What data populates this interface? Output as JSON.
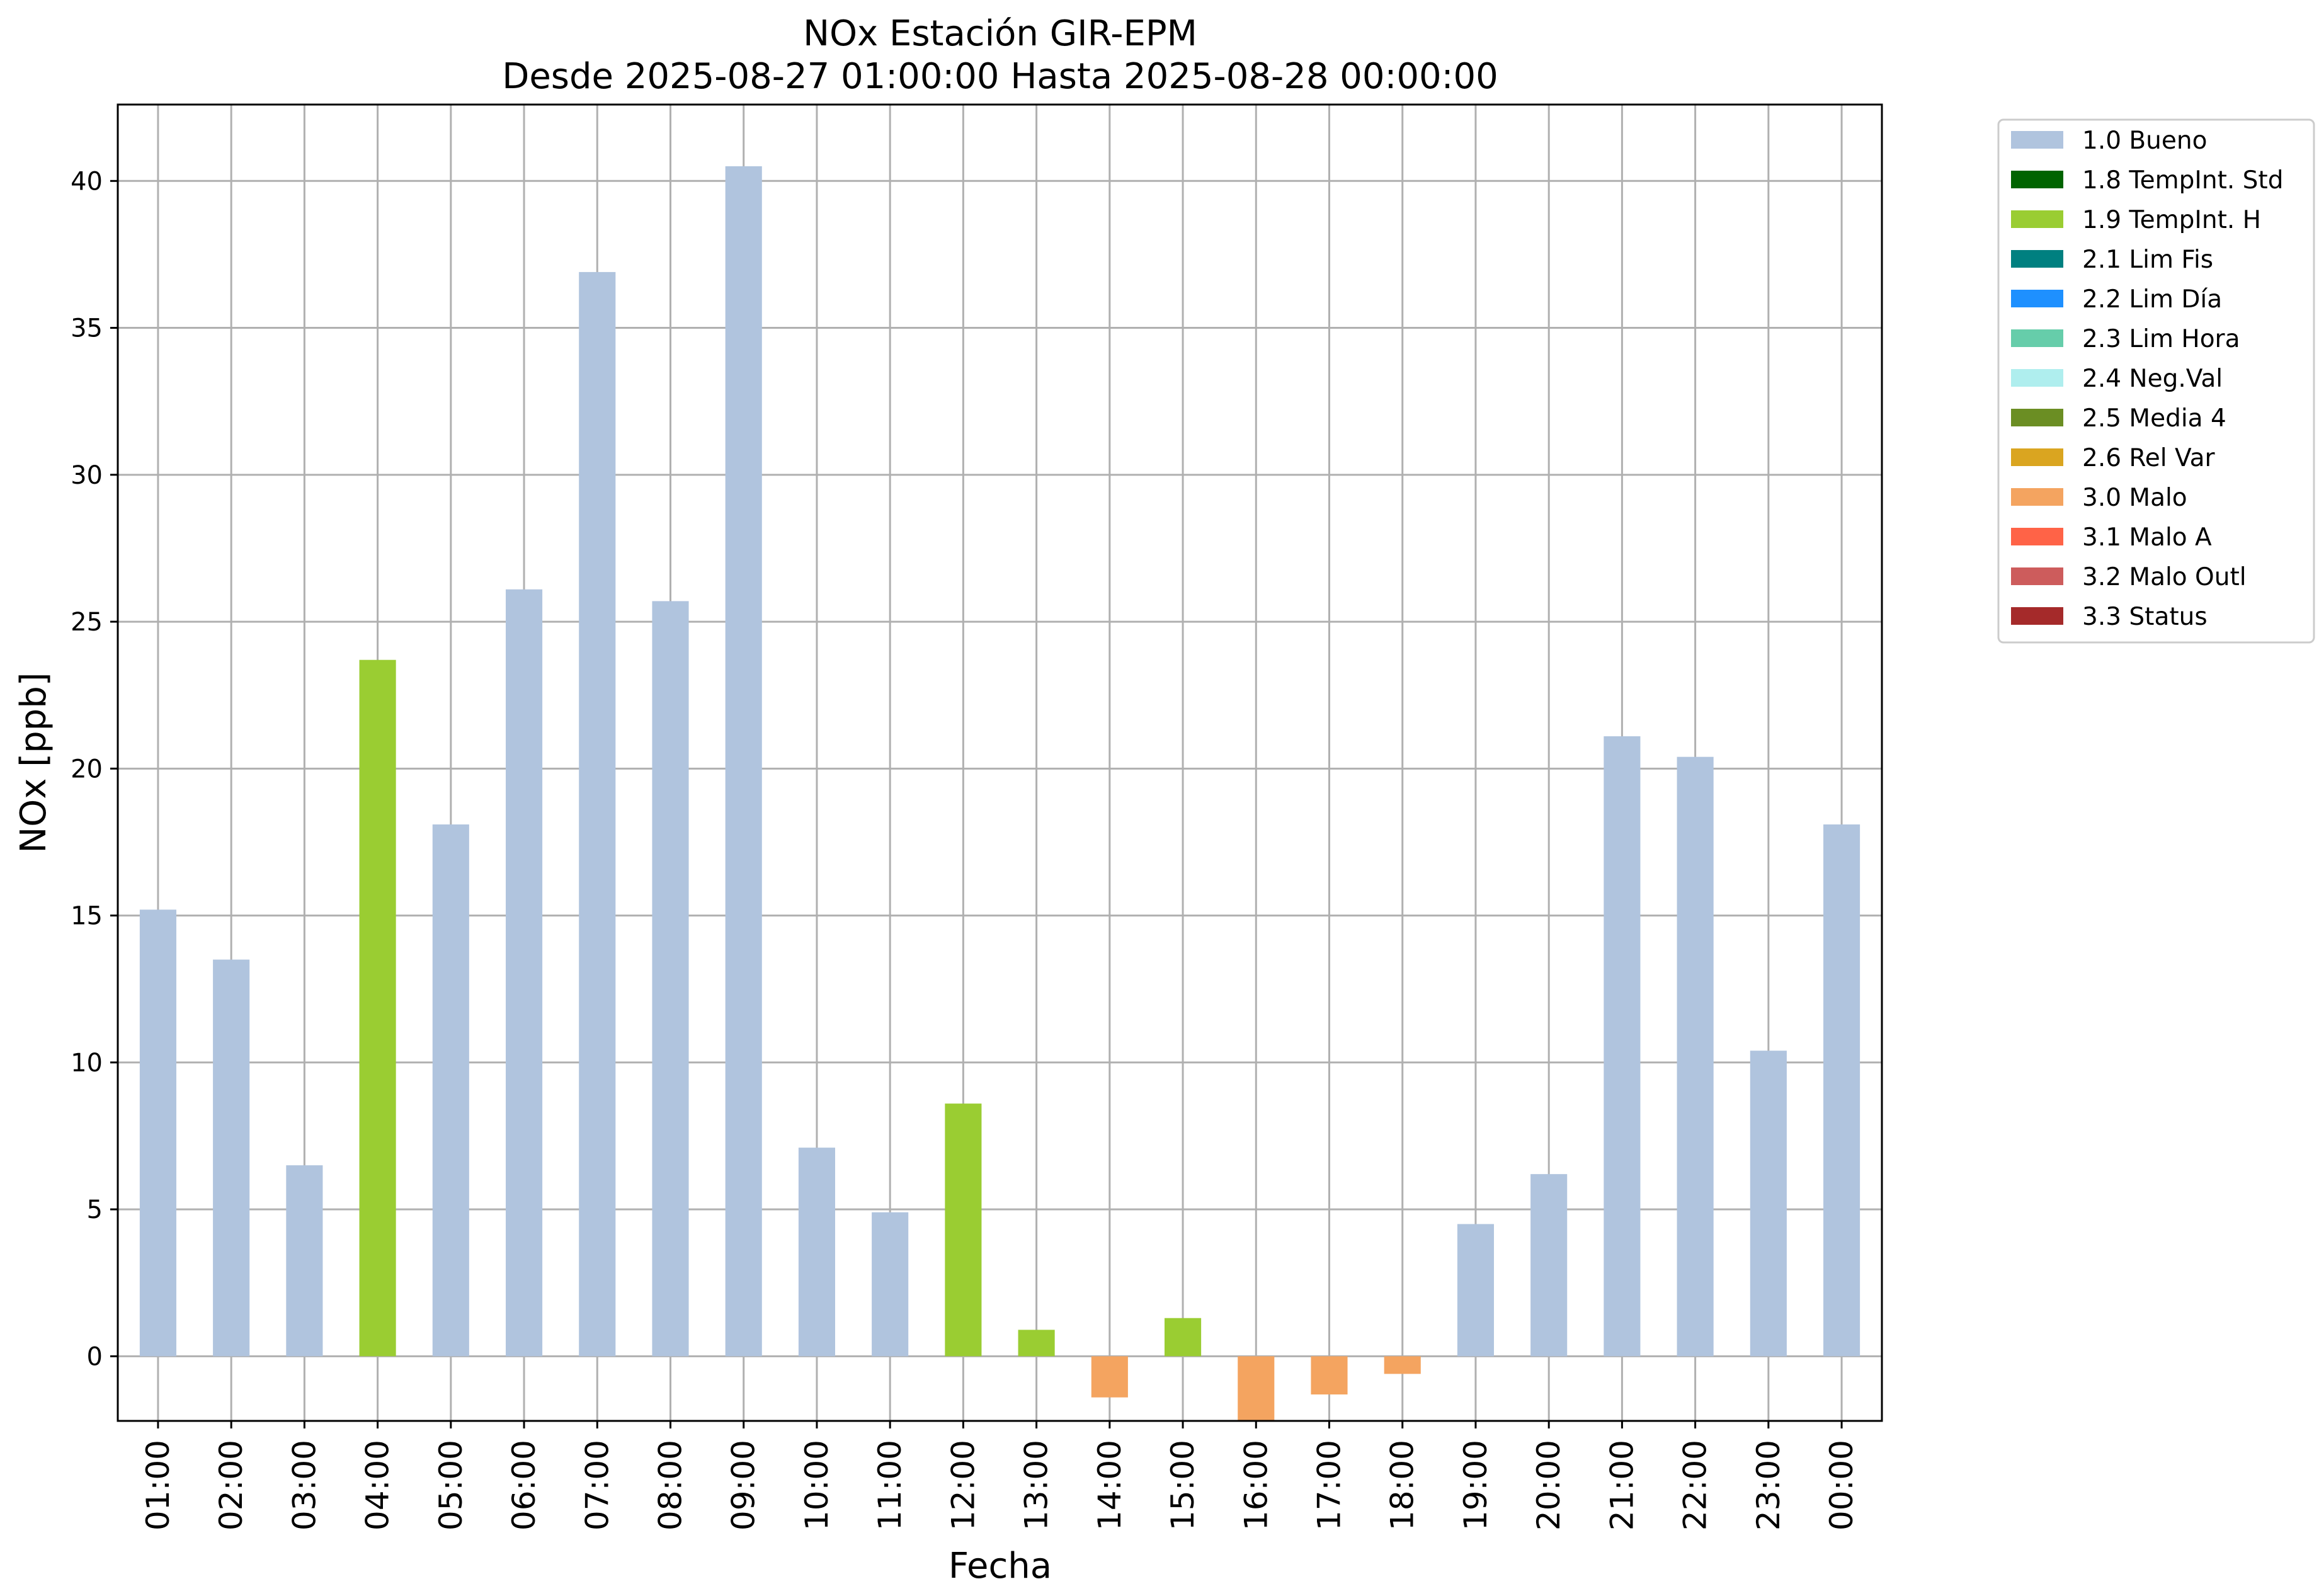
{
  "chart_data": {
    "type": "bar",
    "title": "NOx Estación GIR-EPM",
    "subtitle": "Desde 2025-08-27 01:00:00 Hasta 2025-08-28 00:00:00",
    "xlabel": "Fecha",
    "ylabel": "NOx [ppb]",
    "ylim": [
      -2.2,
      42.6
    ],
    "yticks": [
      "0",
      "5",
      "10",
      "15",
      "20",
      "25",
      "30",
      "35",
      "40"
    ],
    "grid": true,
    "legend_position": "outside-top-right",
    "categories": [
      "01:00",
      "02:00",
      "03:00",
      "04:00",
      "05:00",
      "06:00",
      "07:00",
      "08:00",
      "09:00",
      "10:00",
      "11:00",
      "12:00",
      "13:00",
      "14:00",
      "15:00",
      "16:00",
      "17:00",
      "18:00",
      "19:00",
      "20:00",
      "21:00",
      "22:00",
      "23:00",
      "00:00"
    ],
    "values": [
      15.2,
      13.5,
      6.5,
      23.7,
      18.1,
      26.1,
      36.9,
      25.7,
      40.5,
      7.1,
      4.9,
      8.6,
      0.9,
      -1.4,
      1.3,
      -2.2,
      -1.3,
      -0.6,
      4.5,
      6.2,
      21.1,
      20.4,
      10.4,
      18.1
    ],
    "flags": [
      "1.0 Bueno",
      "1.0 Bueno",
      "1.0 Bueno",
      "1.9 TempInt. H",
      "1.0 Bueno",
      "1.0 Bueno",
      "1.0 Bueno",
      "1.0 Bueno",
      "1.0 Bueno",
      "1.0 Bueno",
      "1.0 Bueno",
      "1.9 TempInt. H",
      "1.9 TempInt. H",
      "3.0 Malo",
      "1.9 TempInt. H",
      "3.0 Malo",
      "3.0 Malo",
      "3.0 Malo",
      "1.0 Bueno",
      "1.0 Bueno",
      "1.0 Bueno",
      "1.0 Bueno",
      "1.0 Bueno",
      "1.0 Bueno"
    ],
    "legend": [
      {
        "label": "1.0 Bueno",
        "color": "#b0c4de"
      },
      {
        "label": "1.8 TempInt. Std",
        "color": "#006400"
      },
      {
        "label": "1.9 TempInt. H",
        "color": "#9acd32"
      },
      {
        "label": "2.1 Lim Fis",
        "color": "#008080"
      },
      {
        "label": "2.2 Lim Día",
        "color": "#1e90ff"
      },
      {
        "label": "2.3 Lim Hora",
        "color": "#66cdaa"
      },
      {
        "label": "2.4 Neg.Val",
        "color": "#afeeee"
      },
      {
        "label": "2.5 Media 4",
        "color": "#6b8e23"
      },
      {
        "label": "2.6 Rel Var",
        "color": "#daa520"
      },
      {
        "label": "3.0 Malo",
        "color": "#f4a460"
      },
      {
        "label": "3.1 Malo A",
        "color": "#ff6347"
      },
      {
        "label": "3.2 Malo Outl",
        "color": "#cd5c5c"
      },
      {
        "label": "3.3 Status",
        "color": "#a52a2a"
      }
    ]
  }
}
